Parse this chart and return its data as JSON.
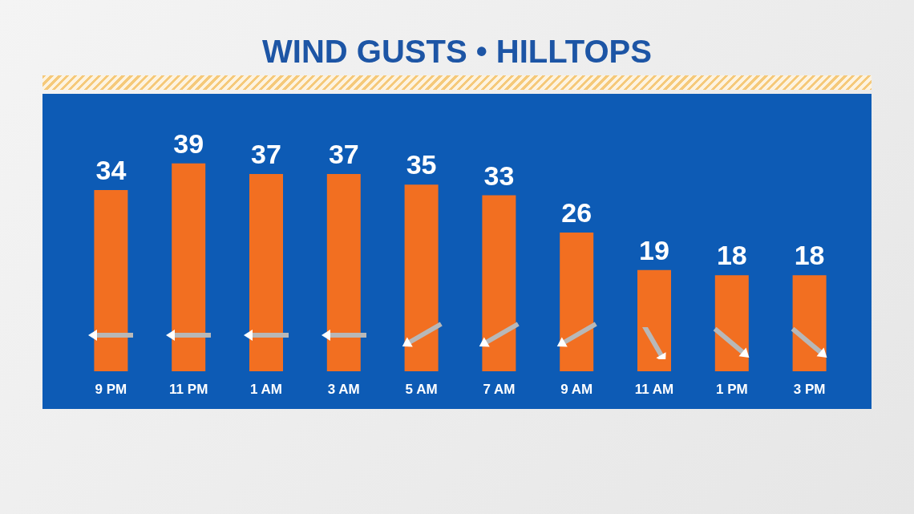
{
  "chart_data": {
    "type": "bar",
    "title": "WIND GUSTS • HILLTOPS",
    "categories": [
      "9 PM",
      "11 PM",
      "1 AM",
      "3 AM",
      "5 AM",
      "7 AM",
      "9 AM",
      "11 AM",
      "1 PM",
      "3 PM"
    ],
    "values": [
      34,
      39,
      37,
      37,
      35,
      33,
      26,
      19,
      18,
      18
    ],
    "color": "#f26f21",
    "data_labels": true
  }
}
